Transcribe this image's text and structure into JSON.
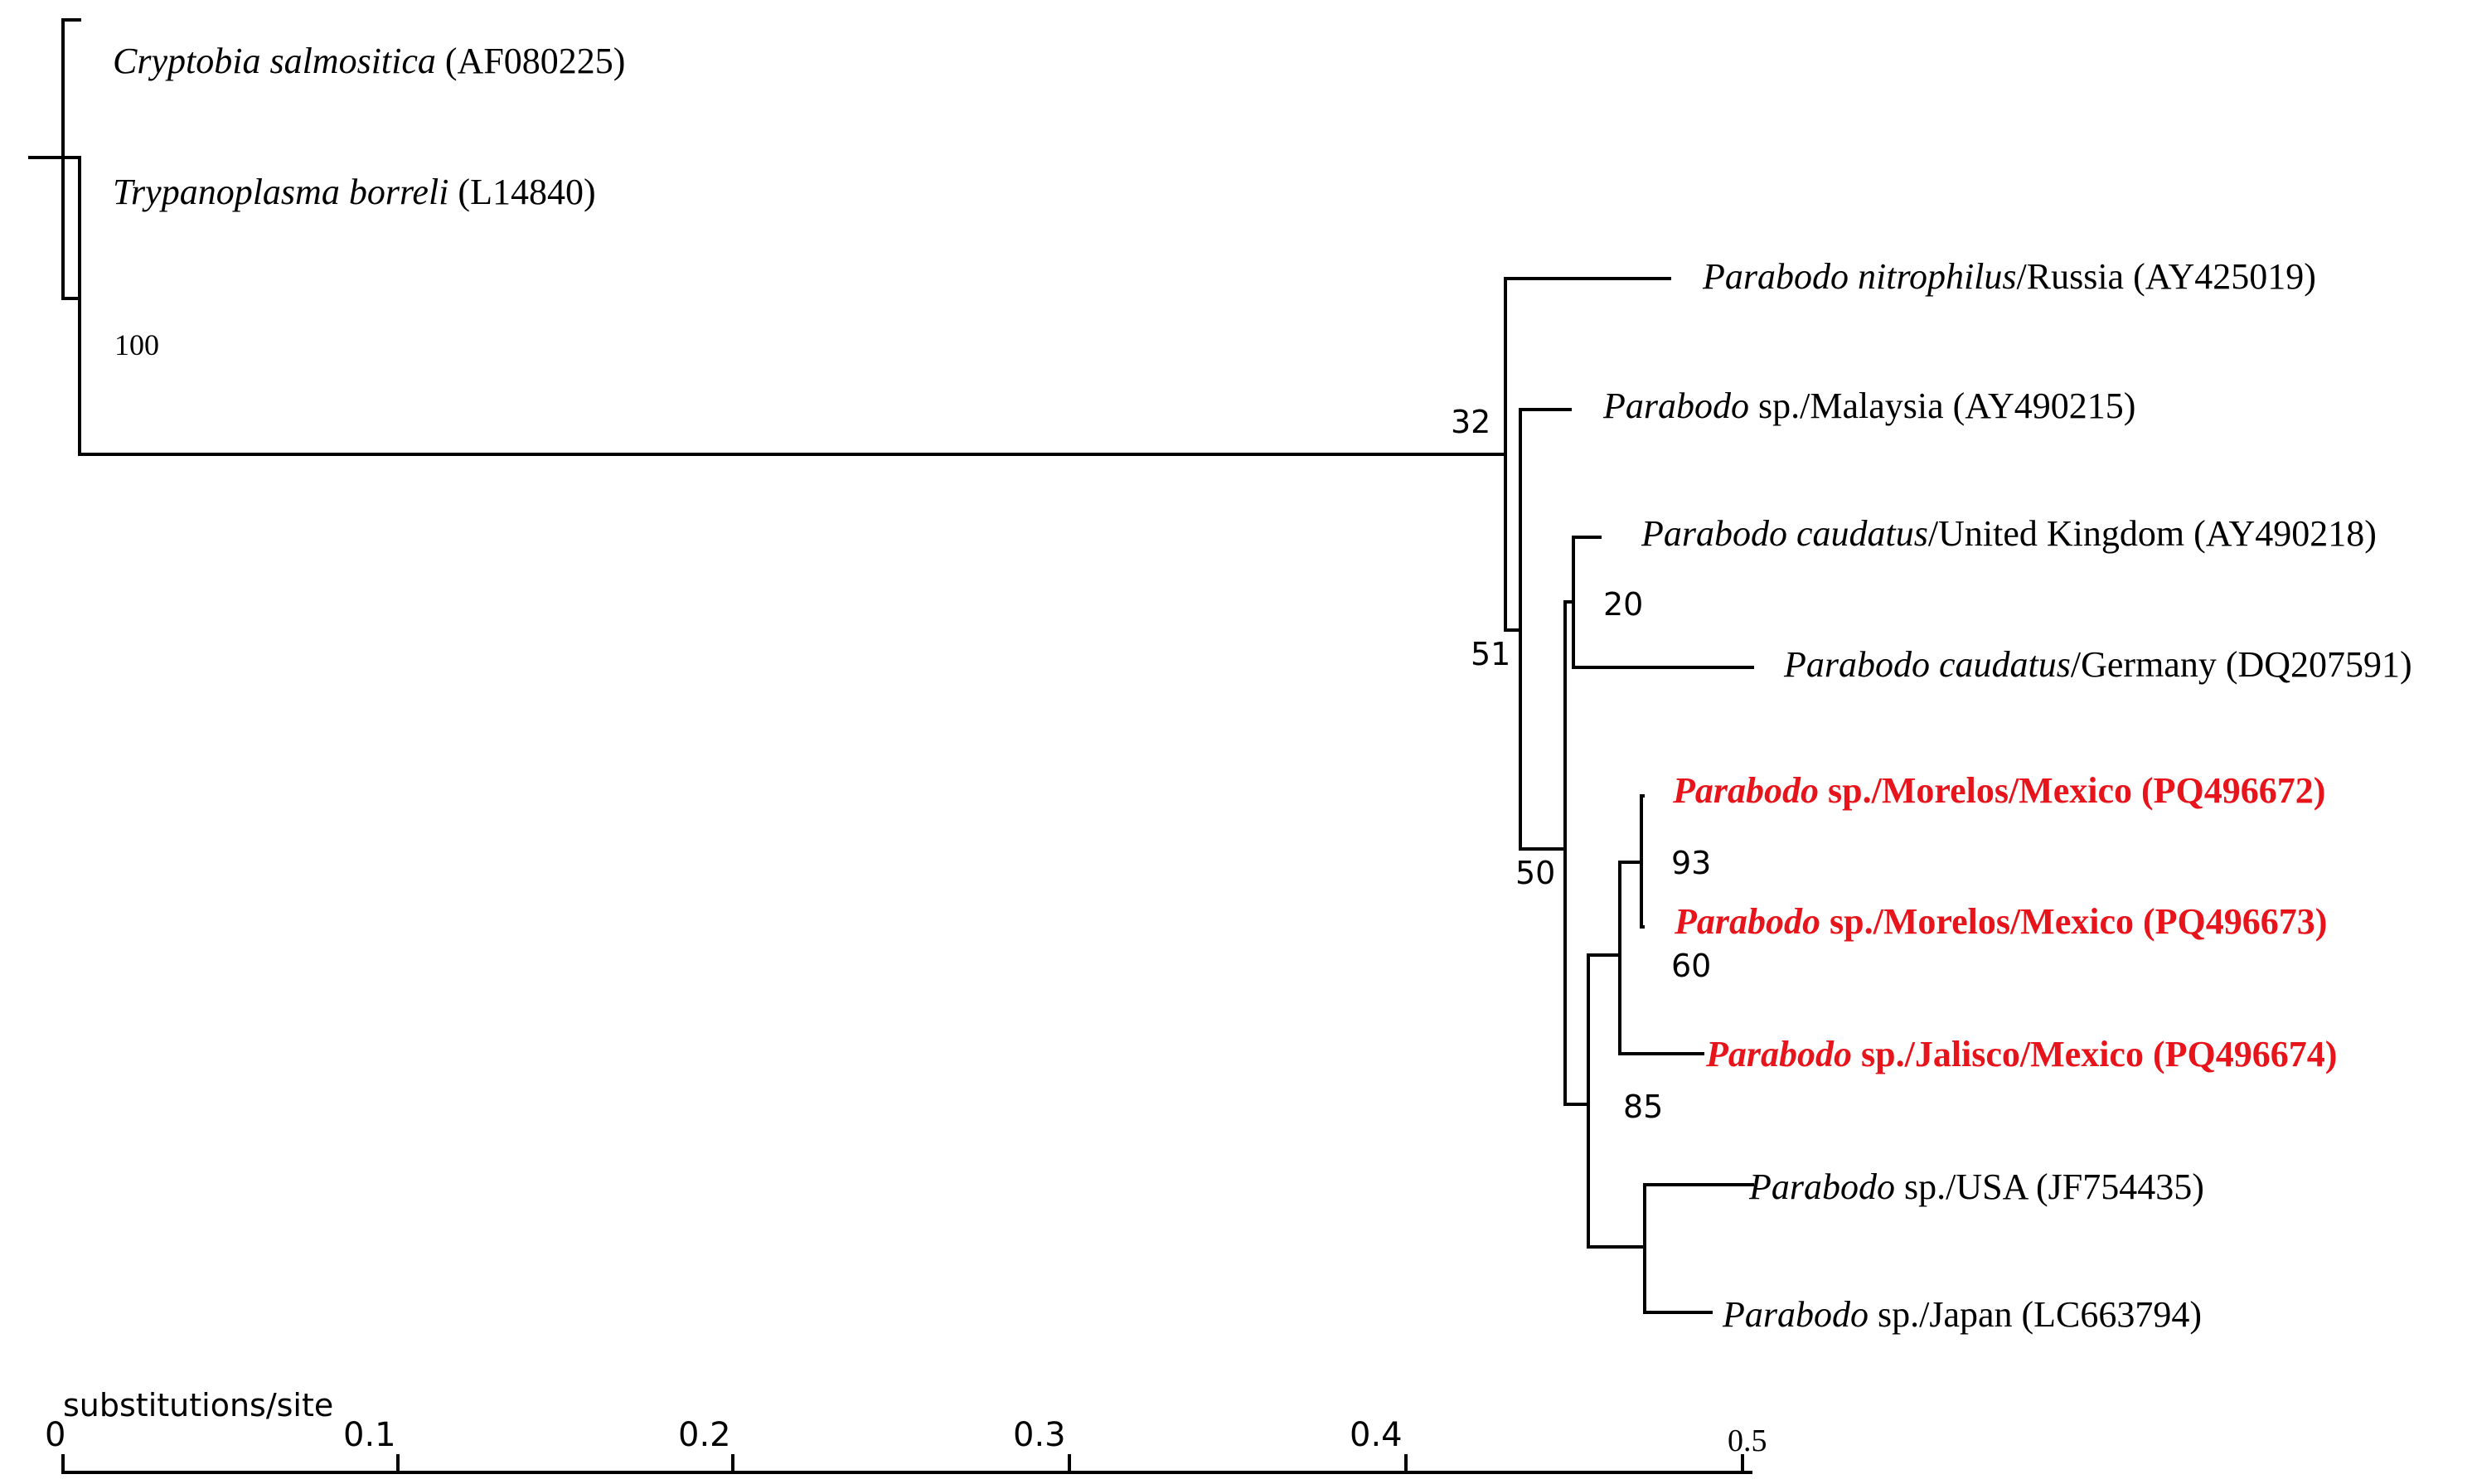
{
  "figure": {
    "taxa": [
      {
        "genus": "Cryptobia salmositica",
        "rest": " (AF080225)",
        "highlight": false
      },
      {
        "genus": "Trypanoplasma borreli",
        "rest": " (L14840)",
        "highlight": false
      },
      {
        "genus": "Parabodo nitrophilus",
        "rest": "/Russia (AY425019)",
        "highlight": false
      },
      {
        "genus": "Parabodo",
        "rest": " sp./Malaysia (AY490215)",
        "highlight": false
      },
      {
        "genus": "Parabodo caudatus",
        "rest": "/United Kingdom (AY490218)",
        "highlight": false
      },
      {
        "genus": "Parabodo caudatus",
        "rest": "/Germany (DQ207591)",
        "highlight": false
      },
      {
        "genus": "Parabodo",
        "rest": " sp./Morelos/Mexico (PQ496672)",
        "highlight": true
      },
      {
        "genus": "Parabodo",
        "rest": " sp./Morelos/Mexico (PQ496673)",
        "highlight": true
      },
      {
        "genus": "Parabodo",
        "rest": " sp./Jalisco/Mexico (PQ496674)",
        "highlight": true
      },
      {
        "genus": "Parabodo",
        "rest": " sp./USA (JF754435)",
        "highlight": false
      },
      {
        "genus": "Parabodo",
        "rest": " sp./Japan (LC663794)",
        "highlight": false
      }
    ],
    "bootstrap": [
      "100",
      "32",
      "51",
      "20",
      "50",
      "93",
      "60",
      "85"
    ],
    "scale": {
      "label": "substitutions/site",
      "ticks": [
        "0",
        "0.1",
        "0.2",
        "0.3",
        "0.4",
        "0.5"
      ]
    },
    "colors": {
      "highlight": "#e8141b",
      "branch": "#000000"
    }
  }
}
